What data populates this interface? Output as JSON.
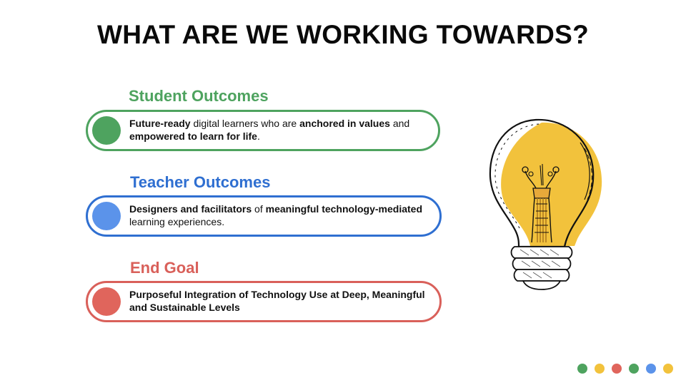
{
  "slide": {
    "title": "WHAT ARE WE WORKING TOWARDS?"
  },
  "sections": [
    {
      "heading": "Student Outcomes",
      "color": "#4ea35f",
      "parts": [
        {
          "text": "Future-ready",
          "bold": true
        },
        {
          "text": " digital learners who are ",
          "bold": false
        },
        {
          "text": "anchored in values",
          "bold": true
        },
        {
          "text": " and ",
          "bold": false
        },
        {
          "text": "empowered to learn for life",
          "bold": true
        },
        {
          "text": ".",
          "bold": false
        }
      ]
    },
    {
      "heading": "Teacher Outcomes",
      "color": "#2f6fd1",
      "dot_color": "#5b93ea",
      "parts": [
        {
          "text": "Designers and facilitators",
          "bold": true
        },
        {
          "text": " of ",
          "bold": false
        },
        {
          "text": "meaningful technology-mediated",
          "bold": true
        },
        {
          "text": " learning experiences.",
          "bold": false
        }
      ]
    },
    {
      "heading": "End Goal",
      "color": "#d9605a",
      "dot_color": "#e0655c",
      "parts": [
        {
          "text": "Purposeful Integration of Technology Use at Deep, Meaningful and Sustainable Levels",
          "bold": true
        }
      ]
    }
  ],
  "decor": {
    "bulb_icon": "lightbulb-icon",
    "bulb_fill": "#f2c23c",
    "dot_colors": [
      "#4ea35f",
      "#f2c23c",
      "#e0655c",
      "#4ea35f",
      "#5b93ea",
      "#f2c23c"
    ]
  }
}
